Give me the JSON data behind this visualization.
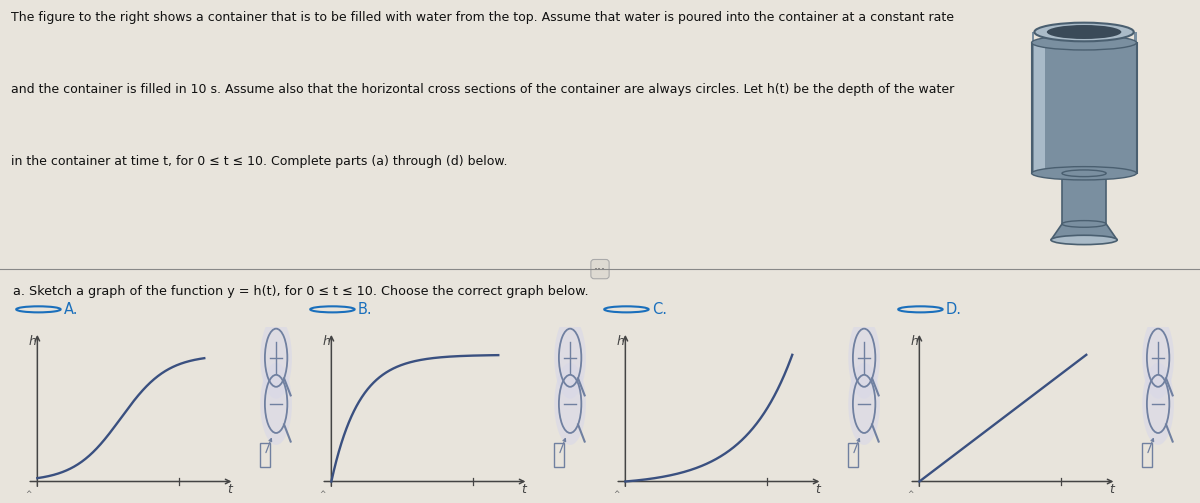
{
  "background_color": "#e8e4dc",
  "top_bg": "#e8e4dc",
  "bottom_bg": "#e8e4dc",
  "divider_color": "#888888",
  "top_text_line1": "The figure to the right shows a container that is to be filled with water from the top. Assume that water is poured into the container at a constant rate",
  "top_text_line2": "and the container is filled in 10 s. Assume also that the horizontal cross sections of the container are always circles. Let h(t) be the depth of the water",
  "top_text_line3": "in the container at time t, for 0 ≤ t ≤ 10. Complete parts (a) through (d) below.",
  "part_a_text": "a. Sketch a graph of the function y = h(t), for 0 ≤ t ≤ 10. Choose the correct graph below.",
  "options": [
    "A.",
    "B.",
    "C.",
    "D."
  ],
  "curve_color": "#3a5080",
  "axis_color": "#444444",
  "text_color": "#111111",
  "option_color": "#1a6fbc",
  "radio_color": "#1a6fbc",
  "zoom_color": "#7080a0",
  "container_fill": "#7a8fa0",
  "container_dark": "#4a5f70",
  "container_light": "#aabbc8",
  "container_highlight": "#c8d8e4",
  "dots_color": "#555555"
}
